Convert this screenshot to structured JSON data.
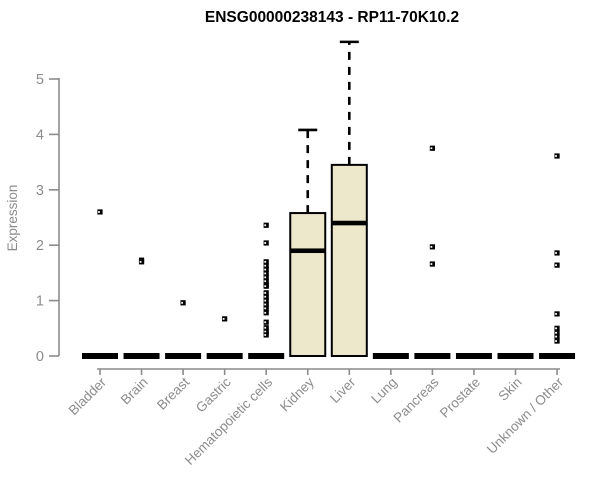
{
  "title": "ENSG00000238143 - RP11-70K10.2",
  "chart_data": {
    "type": "boxplot",
    "title": "ENSG00000238143 - RP11-70K10.2",
    "ylabel": "Expression",
    "xlabel": "",
    "ylim": [
      0,
      5
    ],
    "yticks": [
      "0",
      "1",
      "2",
      "3",
      "4",
      "5"
    ],
    "grid": false,
    "legend": false,
    "categories": [
      "Bladder",
      "Brain",
      "Breast",
      "Gastric",
      "Hematopoietic cells",
      "Kidney",
      "Liver",
      "Lung",
      "Pancreas",
      "Prostate",
      "Skin",
      "Unknown / Other"
    ],
    "series": [
      {
        "name": "Bladder",
        "q1": 0,
        "median": 0,
        "q3": 0,
        "whisker_low": 0,
        "whisker_high": 0,
        "outliers": [
          2.6
        ]
      },
      {
        "name": "Brain",
        "q1": 0,
        "median": 0,
        "q3": 0,
        "whisker_low": 0,
        "whisker_high": 0,
        "outliers": [
          1.73,
          1.7
        ]
      },
      {
        "name": "Breast",
        "q1": 0,
        "median": 0,
        "q3": 0,
        "whisker_low": 0,
        "whisker_high": 0,
        "outliers": [
          0.96
        ]
      },
      {
        "name": "Gastric",
        "q1": 0,
        "median": 0,
        "q3": 0,
        "whisker_low": 0,
        "whisker_high": 0,
        "outliers": [
          0.67
        ]
      },
      {
        "name": "Hematopoietic cells",
        "q1": 0,
        "median": 0,
        "q3": 0,
        "whisker_low": 0,
        "whisker_high": 0,
        "outliers": [
          2.36,
          2.04,
          1.7,
          1.63,
          1.56,
          1.49,
          1.42,
          1.35,
          1.28,
          1.26,
          1.14,
          1.07,
          1.0,
          0.93,
          0.86,
          0.78,
          0.61,
          0.51,
          0.44,
          0.38
        ]
      },
      {
        "name": "Kidney",
        "q1": 0,
        "median": 1.9,
        "q3": 2.58,
        "whisker_low": 0,
        "whisker_high": 4.08,
        "outliers": []
      },
      {
        "name": "Liver",
        "q1": 0,
        "median": 2.4,
        "q3": 3.45,
        "whisker_low": 0,
        "whisker_high": 5.67,
        "outliers": []
      },
      {
        "name": "Lung",
        "q1": 0,
        "median": 0,
        "q3": 0,
        "whisker_low": 0,
        "whisker_high": 0,
        "outliers": []
      },
      {
        "name": "Pancreas",
        "q1": 0,
        "median": 0,
        "q3": 0,
        "whisker_low": 0,
        "whisker_high": 0,
        "outliers": [
          3.75,
          1.97,
          1.66
        ]
      },
      {
        "name": "Prostate",
        "q1": 0,
        "median": 0,
        "q3": 0,
        "whisker_low": 0,
        "whisker_high": 0,
        "outliers": []
      },
      {
        "name": "Skin",
        "q1": 0,
        "median": 0,
        "q3": 0,
        "whisker_low": 0,
        "whisker_high": 0,
        "outliers": []
      },
      {
        "name": "Unknown / Other",
        "q1": 0,
        "median": 0,
        "q3": 0,
        "whisker_low": 0,
        "whisker_high": 0,
        "outliers": [
          3.61,
          1.86,
          1.64,
          0.76,
          0.5,
          0.42,
          0.35,
          0.27
        ]
      }
    ],
    "colors": {
      "box_fill": "#EDE7CB",
      "box_stroke": "#000000",
      "median": "#000000",
      "whisker": "#000000",
      "outlier": "#000000",
      "axis": "#8C8C8C",
      "tick_text": "#8C8C8C",
      "title_text": "#000000",
      "background": "#FFFFFF"
    }
  }
}
